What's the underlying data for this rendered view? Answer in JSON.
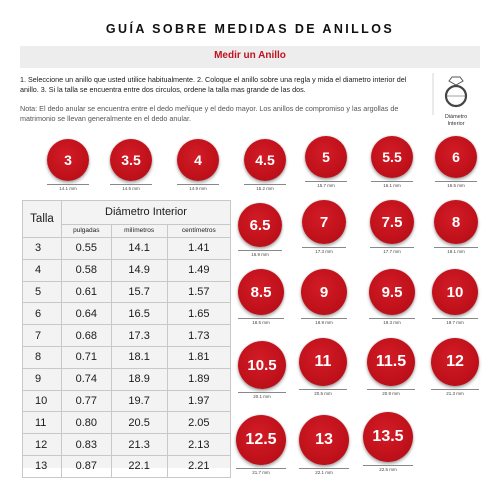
{
  "header": {
    "title": "GUÍA SOBRE MEDIDAS DE ANILLOS",
    "subtitle": "Medir un Anillo"
  },
  "instructions": "1. Seleccione un anillo que usted utilice habitualmente. 2. Coloque el anillo sobre una regla y mida el diametro interior del anillo. 3. Si la talla se encuentra entre dos circulos, ordene la talla mas grande de las dos.",
  "note": "Nota: El dedo anular se encuentra entre el dedo meñique y el dedo mayor. Los anillos de compromiso y las argollas de matrimonio se llevan generalmente en el dedo anular.",
  "diagram": {
    "label_line1": "Diámetro",
    "label_line2": "Interior",
    "icon": "ring-diameter-icon"
  },
  "table": {
    "talla_header": "Talla",
    "diameter_header": "Diámetro Interior",
    "sub_headers": [
      "pulgadas",
      "milímetros",
      "centímetros"
    ],
    "rows": [
      {
        "talla": "3",
        "in": "0.55",
        "mm": "14.1",
        "cm": "1.41"
      },
      {
        "talla": "4",
        "in": "0.58",
        "mm": "14.9",
        "cm": "1.49"
      },
      {
        "talla": "5",
        "in": "0.61",
        "mm": "15.7",
        "cm": "1.57"
      },
      {
        "talla": "6",
        "in": "0.64",
        "mm": "16.5",
        "cm": "1.65"
      },
      {
        "talla": "7",
        "in": "0.68",
        "mm": "17.3",
        "cm": "1.73"
      },
      {
        "talla": "8",
        "in": "0.71",
        "mm": "18.1",
        "cm": "1.81"
      },
      {
        "talla": "9",
        "in": "0.74",
        "mm": "18.9",
        "cm": "1.89"
      },
      {
        "talla": "10",
        "in": "0.77",
        "mm": "19.7",
        "cm": "1.97"
      },
      {
        "talla": "11",
        "in": "0.80",
        "mm": "20.5",
        "cm": "2.05"
      },
      {
        "talla": "12",
        "in": "0.83",
        "mm": "21.3",
        "cm": "2.13"
      },
      {
        "talla": "13",
        "in": "0.87",
        "mm": "22.1",
        "cm": "2.21"
      }
    ]
  },
  "rings": [
    {
      "size": "3",
      "diameter_label": "14.1 mm"
    },
    {
      "size": "3.5",
      "diameter_label": "14.5 mm"
    },
    {
      "size": "4",
      "diameter_label": "14.9 mm"
    },
    {
      "size": "4.5",
      "diameter_label": "15.2 mm"
    },
    {
      "size": "5",
      "diameter_label": "15.7 mm"
    },
    {
      "size": "5.5",
      "diameter_label": "16.1 mm"
    },
    {
      "size": "6",
      "diameter_label": "16.5 mm"
    },
    {
      "size": "6.5",
      "diameter_label": "16.9 mm"
    },
    {
      "size": "7",
      "diameter_label": "17.3 mm"
    },
    {
      "size": "7.5",
      "diameter_label": "17.7 mm"
    },
    {
      "size": "8",
      "diameter_label": "18.1 mm"
    },
    {
      "size": "8.5",
      "diameter_label": "18.5 mm"
    },
    {
      "size": "9",
      "diameter_label": "18.9 mm"
    },
    {
      "size": "9.5",
      "diameter_label": "19.3 mm"
    },
    {
      "size": "10",
      "diameter_label": "19.7 mm"
    },
    {
      "size": "10.5",
      "diameter_label": "20.1 mm"
    },
    {
      "size": "11",
      "diameter_label": "20.5 mm"
    },
    {
      "size": "11.5",
      "diameter_label": "20.9 mm"
    },
    {
      "size": "12",
      "diameter_label": "21.3 mm"
    },
    {
      "size": "12.5",
      "diameter_label": "21.7 mm"
    },
    {
      "size": "13",
      "diameter_label": "22.1 mm"
    },
    {
      "size": "13.5",
      "diameter_label": "22.5 mm"
    }
  ],
  "colors": {
    "accent": "#c3121d",
    "subtitle_bar": "#ededed",
    "table_bg": "#f3f3f3"
  }
}
